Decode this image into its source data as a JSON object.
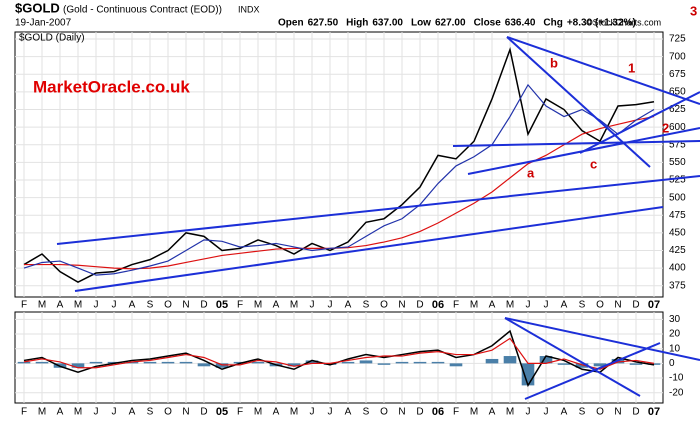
{
  "header": {
    "symbol": "$GOLD",
    "description": "(Gold - Continuous Contract (EOD))",
    "exchange": "INDX",
    "date": "19-Jan-2007",
    "quote": [
      "Open",
      "627.50",
      "High",
      "637.00",
      "Low",
      "627.00",
      "Close",
      "636.40",
      "Chg",
      "+8.30 (+1.32%)"
    ]
  },
  "credit": "©StockCharts.com",
  "watermark": "MarketOracle.co.uk",
  "annotations": [
    "a",
    "b",
    "c",
    "1",
    "2",
    "3"
  ],
  "chart_data": [
    {
      "type": "line",
      "title": "$GOLD (Daily)",
      "categories": [
        "F",
        "M",
        "A",
        "M",
        "J",
        "J",
        "A",
        "S",
        "O",
        "N",
        "D",
        "05",
        "F",
        "M",
        "A",
        "M",
        "J",
        "J",
        "A",
        "S",
        "O",
        "N",
        "D",
        "06",
        "F",
        "M",
        "A",
        "M",
        "J",
        "J",
        "A",
        "S",
        "O",
        "N",
        "D",
        "07"
      ],
      "series": [
        {
          "color": "#000000",
          "values": [
            405,
            420,
            395,
            380,
            393,
            395,
            405,
            412,
            425,
            450,
            445,
            425,
            428,
            440,
            432,
            420,
            435,
            425,
            437,
            465,
            470,
            490,
            515,
            560,
            555,
            580,
            640,
            710,
            590,
            640,
            625,
            595,
            580,
            630,
            632,
            636
          ]
        },
        {
          "color": "#dd1111",
          "values": [
            405,
            405,
            405,
            404,
            402,
            400,
            399,
            400,
            403,
            408,
            413,
            418,
            421,
            424,
            427,
            428,
            428,
            428,
            429,
            432,
            437,
            443,
            452,
            464,
            478,
            492,
            508,
            528,
            548,
            560,
            575,
            590,
            598,
            604,
            610,
            615
          ]
        },
        {
          "color": "#2233aa",
          "values": [
            400,
            408,
            410,
            400,
            390,
            392,
            397,
            403,
            410,
            425,
            440,
            438,
            430,
            432,
            435,
            430,
            425,
            428,
            430,
            445,
            460,
            470,
            490,
            520,
            545,
            558,
            575,
            615,
            660,
            630,
            615,
            625,
            610,
            590,
            610,
            625
          ]
        }
      ],
      "ylim": [
        359,
        735
      ],
      "yticks": [
        375,
        400,
        425,
        450,
        475,
        500,
        525,
        550,
        575,
        600,
        625,
        650,
        675,
        700,
        725
      ],
      "grid": true
    },
    {
      "type": "line",
      "categories": [
        "F",
        "M",
        "A",
        "M",
        "J",
        "J",
        "A",
        "S",
        "O",
        "N",
        "D",
        "05",
        "F",
        "M",
        "A",
        "M",
        "J",
        "J",
        "A",
        "S",
        "O",
        "N",
        "D",
        "06",
        "F",
        "M",
        "A",
        "M",
        "J",
        "J",
        "A",
        "S",
        "O",
        "N",
        "D",
        "07"
      ],
      "series": [
        {
          "color": "#000000",
          "values": [
            2,
            4,
            -2,
            -6,
            -2,
            0,
            2,
            3,
            5,
            7,
            2,
            -4,
            0,
            3,
            -1,
            -4,
            2,
            -1,
            3,
            6,
            4,
            6,
            8,
            9,
            4,
            6,
            12,
            22,
            -15,
            5,
            2,
            -4,
            -6,
            4,
            1,
            -1
          ]
        },
        {
          "color": "#dd1111",
          "values": [
            1,
            3,
            1,
            -3,
            -3,
            -1,
            1,
            2,
            4,
            6,
            4,
            -1,
            -1,
            2,
            1,
            -2,
            0,
            0,
            2,
            4,
            5,
            5,
            7,
            8,
            6,
            6,
            9,
            17,
            0,
            0,
            3,
            -1,
            -4,
            1,
            2,
            0
          ]
        }
      ],
      "histogram": {
        "color": "#4a7fa8",
        "values": [
          1,
          1,
          -3,
          -3,
          1,
          1,
          1,
          1,
          1,
          1,
          -2,
          -3,
          1,
          1,
          -2,
          -2,
          2,
          -1,
          1,
          2,
          -1,
          1,
          1,
          1,
          -2,
          0,
          3,
          5,
          -15,
          5,
          -1,
          -3,
          -2,
          3,
          -1,
          -1
        ]
      },
      "ylim": [
        -27,
        35
      ],
      "yticks": [
        -20,
        -10,
        0,
        10,
        20,
        30
      ],
      "grid": true
    }
  ]
}
